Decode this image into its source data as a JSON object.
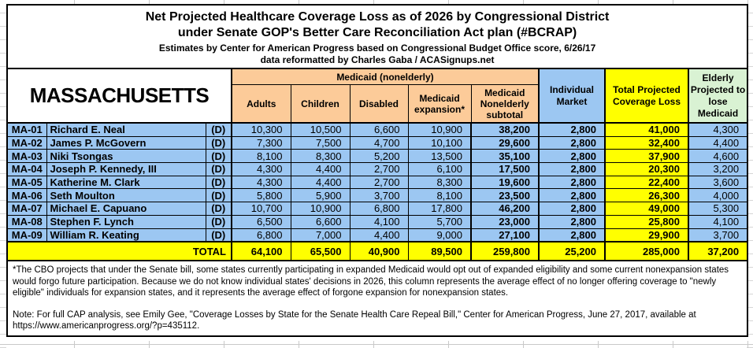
{
  "title": {
    "line1": "Net Projected Healthcare Coverage Loss as of 2026 by Congressional District",
    "line2": "under Senate GOP's Better Care Reconciliation Act plan (#BCRAP)",
    "line3": "Estimates by Center for American Progress based on Congressional Budget Office score, 6/26/17",
    "line4": "data reformatted by Charles Gaba / ACASignups.net"
  },
  "state_label": "MASSACHUSETTS",
  "header": {
    "medicaid_group": "Medicaid (nonelderly)",
    "adults": "Adults",
    "children": "Children",
    "disabled": "Disabled",
    "expansion": "Medicaid expansion*",
    "subtotal": "Medicaid Nonelderly subtotal",
    "individual": "Individual Market",
    "total": "Total Projected Coverage Loss",
    "elderly": "Elderly Projected to lose Medicaid"
  },
  "rows": [
    {
      "district": "MA-01",
      "name": "Richard E. Neal",
      "party": "(D)",
      "adults": "10,300",
      "children": "10,500",
      "disabled": "6,600",
      "expansion": "10,900",
      "subtotal": "38,200",
      "individual": "2,800",
      "total": "41,000",
      "elderly": "4,300"
    },
    {
      "district": "MA-02",
      "name": "James P. McGovern",
      "party": "(D)",
      "adults": "7,300",
      "children": "7,500",
      "disabled": "4,700",
      "expansion": "10,100",
      "subtotal": "29,600",
      "individual": "2,800",
      "total": "32,400",
      "elderly": "4,400"
    },
    {
      "district": "MA-03",
      "name": "Niki Tsongas",
      "party": "(D)",
      "adults": "8,100",
      "children": "8,300",
      "disabled": "5,200",
      "expansion": "13,500",
      "subtotal": "35,100",
      "individual": "2,800",
      "total": "37,900",
      "elderly": "4,600"
    },
    {
      "district": "MA-04",
      "name": "Joseph P. Kennedy, III",
      "party": "(D)",
      "adults": "4,300",
      "children": "4,400",
      "disabled": "2,700",
      "expansion": "6,100",
      "subtotal": "17,500",
      "individual": "2,800",
      "total": "20,300",
      "elderly": "3,200"
    },
    {
      "district": "MA-05",
      "name": "Katherine M. Clark",
      "party": "(D)",
      "adults": "4,300",
      "children": "4,400",
      "disabled": "2,700",
      "expansion": "8,300",
      "subtotal": "19,600",
      "individual": "2,800",
      "total": "22,400",
      "elderly": "3,600"
    },
    {
      "district": "MA-06",
      "name": "Seth Moulton",
      "party": "(D)",
      "adults": "5,800",
      "children": "5,900",
      "disabled": "3,700",
      "expansion": "8,100",
      "subtotal": "23,500",
      "individual": "2,800",
      "total": "26,300",
      "elderly": "4,000"
    },
    {
      "district": "MA-07",
      "name": "Michael E. Capuano",
      "party": "(D)",
      "adults": "10,700",
      "children": "10,900",
      "disabled": "6,800",
      "expansion": "17,800",
      "subtotal": "46,200",
      "individual": "2,800",
      "total": "49,000",
      "elderly": "5,300"
    },
    {
      "district": "MA-08",
      "name": "Stephen F. Lynch",
      "party": "(D)",
      "adults": "6,500",
      "children": "6,600",
      "disabled": "4,100",
      "expansion": "5,700",
      "subtotal": "23,000",
      "individual": "2,800",
      "total": "25,800",
      "elderly": "4,100"
    },
    {
      "district": "MA-09",
      "name": "William R. Keating",
      "party": "(D)",
      "adults": "6,800",
      "children": "7,000",
      "disabled": "4,400",
      "expansion": "9,000",
      "subtotal": "27,100",
      "individual": "2,800",
      "total": "29,900",
      "elderly": "3,700"
    }
  ],
  "total_row": {
    "label": "TOTAL",
    "adults": "64,100",
    "children": "65,500",
    "disabled": "40,900",
    "expansion": "89,500",
    "subtotal": "259,800",
    "individual": "25,200",
    "total": "285,000",
    "elderly": "37,200"
  },
  "footnotes": {
    "star_note": "*The CBO projects that under the Senate bill, some states currently participating in expanded Medicaid would opt out of expanded eligibility and some current nonexpansion states would forgo future participation. Because we do not know individual states' decisions in 2026, this column represents the average effect of no longer offering coverage to \"newly eligible\" individuals for expansion states, and it represents the average effect of forgone expansion for nonexpansion states.",
    "cap_note": "Note: For full CAP analysis, see Emily Gee, \"Coverage Losses by State for the Senate Health Care Repeal Bill,\" Center for American Progress, June 27, 2017, available at https://www.americanprogress.org/?p=435112."
  },
  "colors": {
    "medicaid_header_peach": "#FCCB99",
    "row_blue": "#9CC7F2",
    "highlight_yellow": "#FFFF00",
    "elderly_green": "#D9F2D3",
    "border_black": "#000000"
  }
}
